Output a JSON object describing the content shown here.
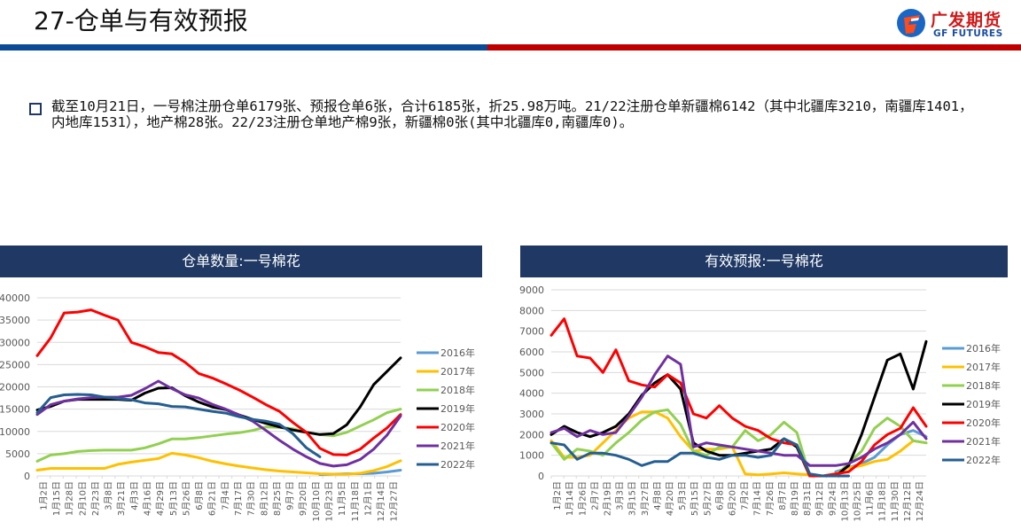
{
  "header": {
    "title": "27-仓单与有效预报",
    "logo_cn": "广发期货",
    "logo_en": "GF FUTURES",
    "colors": {
      "blue_bar": "#0a4a96",
      "red_bar": "#c00000",
      "chart_header_bg": "#1f3864"
    }
  },
  "summary": {
    "text": "截至10月21日，一号棉注册仓单6179张、预报仓单6张，合计6185张，折25.98万吨。21/22注册仓单新疆棉6142（其中北疆库3210，南疆库1401，内地库1531），地产棉28张。22/23注册仓单地产棉9张，新疆棉0张(其中北疆库0,南疆库0)。"
  },
  "legend": [
    "2016年",
    "2017年",
    "2018年",
    "2019年",
    "2020年",
    "2021年",
    "2022年"
  ],
  "series_colors": {
    "2016年": "#5b9bd5",
    "2017年": "#ffc000",
    "2018年": "#92d050",
    "2019年": "#000000",
    "2020年": "#ff0000",
    "2021年": "#7030a0",
    "2022年": "#255e91"
  },
  "chart_data": [
    {
      "type": "line",
      "title": "仓单数量:一号棉花",
      "xlabel": "",
      "ylabel": "",
      "ylim": [
        0,
        40000
      ],
      "yticks": [
        0,
        5000,
        10000,
        15000,
        20000,
        25000,
        30000,
        35000,
        40000
      ],
      "grid": true,
      "legend_position": "right",
      "categories": [
        "1月2日",
        "1月15日",
        "1月28日",
        "2月10日",
        "2月23日",
        "3月8日",
        "3月21日",
        "4月3日",
        "4月16日",
        "4月29日",
        "5月13日",
        "5月26日",
        "6月8日",
        "6月21日",
        "7月4日",
        "7月17日",
        "7月30日",
        "8月12日",
        "8月25日",
        "9月7日",
        "9月20日",
        "10月10日",
        "10月23日",
        "11月5日",
        "11月18日",
        "12月1日",
        "12月14日",
        "12月27日"
      ],
      "series": [
        {
          "name": "2016年",
          "values": [
            null,
            null,
            null,
            null,
            null,
            null,
            null,
            null,
            null,
            null,
            null,
            null,
            null,
            null,
            null,
            null,
            null,
            null,
            null,
            null,
            null,
            300,
            400,
            500,
            500,
            600,
            900,
            1300
          ]
        },
        {
          "name": "2017年",
          "values": [
            1300,
            1700,
            1700,
            1700,
            1700,
            1700,
            2600,
            3100,
            3500,
            3900,
            5100,
            4700,
            4100,
            3300,
            2700,
            2200,
            1800,
            1400,
            1100,
            900,
            700,
            500,
            400,
            400,
            600,
            1200,
            2100,
            3400
          ]
        },
        {
          "name": "2018年",
          "values": [
            3300,
            4700,
            5000,
            5500,
            5700,
            5800,
            5800,
            5800,
            6300,
            7200,
            8300,
            8300,
            8600,
            9000,
            9400,
            9700,
            10200,
            11000,
            10900,
            10600,
            9800,
            9300,
            9000,
            9800,
            11200,
            12600,
            14200,
            15000
          ]
        },
        {
          "name": "2019年",
          "values": [
            14800,
            15600,
            16800,
            17200,
            17200,
            17200,
            17200,
            17000,
            18600,
            19700,
            19800,
            18000,
            16600,
            15500,
            14900,
            13700,
            12700,
            11800,
            11000,
            10300,
            9800,
            9300,
            9500,
            11500,
            15500,
            20500,
            23500,
            26500
          ]
        },
        {
          "name": "2020年",
          "values": [
            27000,
            31000,
            36600,
            36800,
            37300,
            36100,
            35000,
            30000,
            29000,
            27700,
            27400,
            25500,
            23000,
            22000,
            20700,
            19300,
            17700,
            16000,
            14500,
            12000,
            9800,
            6200,
            4800,
            4700,
            6000,
            8500,
            10800,
            13800
          ]
        },
        {
          "name": "2021年",
          "values": [
            13800,
            16000,
            16800,
            17300,
            17600,
            17700,
            17700,
            18100,
            19600,
            21300,
            19600,
            18200,
            17500,
            16100,
            15000,
            13700,
            12300,
            10200,
            8000,
            6000,
            4300,
            2800,
            2200,
            2500,
            3700,
            6000,
            9200,
            13500
          ]
        },
        {
          "name": "2022年",
          "values": [
            14200,
            17600,
            18200,
            18300,
            18200,
            17700,
            17400,
            17100,
            16400,
            16200,
            15600,
            15500,
            15000,
            14500,
            14100,
            13300,
            12700,
            12300,
            11600,
            9500,
            6300,
            4300,
            null,
            null,
            null,
            null,
            null,
            null
          ]
        }
      ]
    },
    {
      "type": "line",
      "title": "有效预报:一号棉花",
      "xlabel": "",
      "ylabel": "",
      "ylim": [
        0,
        9000
      ],
      "yticks": [
        0,
        1000,
        2000,
        3000,
        4000,
        5000,
        6000,
        7000,
        8000,
        9000
      ],
      "grid": true,
      "legend_position": "right",
      "categories": [
        "1月2日",
        "1月14日",
        "1月26日",
        "2月7日",
        "2月19日",
        "3月3日",
        "3月15日",
        "3月27日",
        "4月8日",
        "4月20日",
        "5月3日",
        "5月15日",
        "5月27日",
        "6月8日",
        "6月20日",
        "7月2日",
        "7月14日",
        "7月26日",
        "8月7日",
        "8月19日",
        "8月31日",
        "9月12日",
        "9月24日",
        "10月13日",
        "10月25日",
        "11月6日",
        "11月18日",
        "11月30日",
        "12月12日",
        "12月24日"
      ],
      "series": [
        {
          "name": "2016年",
          "values": [
            null,
            null,
            null,
            null,
            null,
            null,
            null,
            null,
            null,
            null,
            null,
            null,
            null,
            null,
            null,
            null,
            null,
            null,
            null,
            null,
            null,
            null,
            200,
            400,
            600,
            900,
            1500,
            2000,
            2200,
            1900
          ]
        },
        {
          "name": "2017年",
          "values": [
            1700,
            900,
            900,
            1000,
            1600,
            2200,
            2800,
            3100,
            3100,
            2800,
            1900,
            1200,
            1300,
            1300,
            1400,
            100,
            50,
            100,
            150,
            100,
            50,
            0,
            100,
            400,
            500,
            700,
            800,
            1200,
            1700,
            1600
          ]
        },
        {
          "name": "2018年",
          "values": [
            1600,
            800,
            1300,
            1200,
            1000,
            1600,
            2100,
            2700,
            3100,
            3200,
            2500,
            1200,
            1000,
            1400,
            1400,
            2200,
            1700,
            2000,
            2600,
            2100,
            0,
            0,
            0,
            600,
            1200,
            2300,
            2800,
            2400,
            1700,
            1600
          ]
        },
        {
          "name": "2019年",
          "values": [
            2000,
            2400,
            2100,
            1900,
            2100,
            2400,
            3000,
            3900,
            4500,
            4900,
            4200,
            1600,
            1200,
            1000,
            1000,
            1100,
            1200,
            1300,
            1800,
            1400,
            0,
            0,
            0,
            500,
            2000,
            3800,
            5600,
            5900,
            4200,
            6500
          ]
        },
        {
          "name": "2020年",
          "values": [
            6800,
            7600,
            5800,
            5700,
            5000,
            6100,
            4600,
            4400,
            4300,
            4900,
            4500,
            3000,
            2800,
            3400,
            2800,
            2400,
            2200,
            1800,
            1600,
            1500,
            0,
            0,
            100,
            200,
            700,
            1500,
            2000,
            2300,
            3300,
            2400
          ]
        },
        {
          "name": "2021年",
          "values": [
            2100,
            2300,
            1900,
            2200,
            2000,
            2100,
            2900,
            3800,
            4900,
            5800,
            5400,
            1400,
            1600,
            1500,
            1400,
            1300,
            1200,
            1100,
            1000,
            1000,
            500,
            500,
            500,
            600,
            900,
            1300,
            1600,
            2000,
            2600,
            1800
          ]
        },
        {
          "name": "2022年",
          "values": [
            1600,
            1500,
            800,
            1100,
            1100,
            1000,
            800,
            500,
            700,
            700,
            1100,
            1100,
            900,
            800,
            1000,
            1000,
            900,
            1000,
            1800,
            1500,
            100,
            0,
            0,
            0,
            null,
            null,
            null,
            null,
            null,
            null
          ]
        }
      ]
    }
  ]
}
